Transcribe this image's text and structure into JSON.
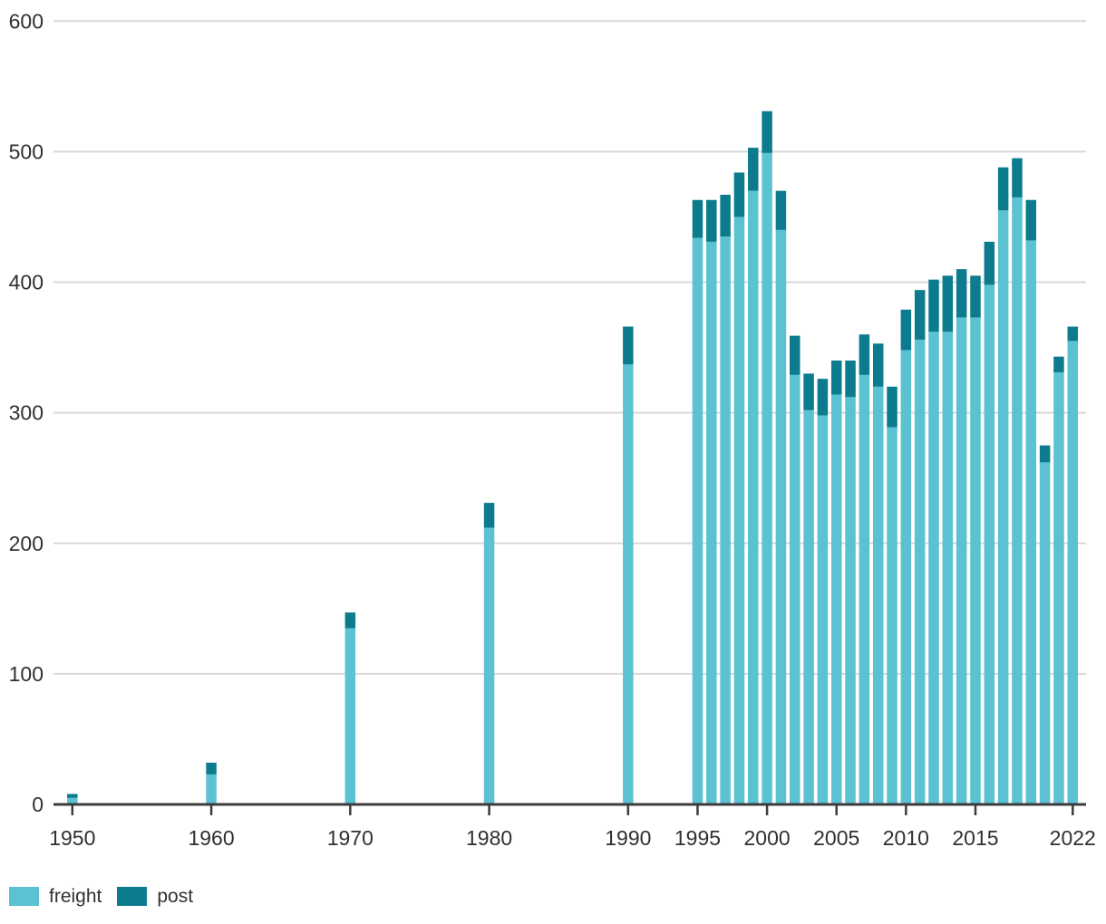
{
  "chart_data": {
    "type": "bar",
    "stacked": true,
    "title": "",
    "xlabel": "",
    "ylabel": "",
    "ylim": [
      0,
      600
    ],
    "yticks": [
      0,
      100,
      200,
      300,
      400,
      500,
      600
    ],
    "xticks": [
      1950,
      1960,
      1970,
      1980,
      1990,
      1995,
      2000,
      2005,
      2010,
      2015,
      2022
    ],
    "grid": true,
    "legend_position": "bottom-left",
    "categories": [
      1950,
      1960,
      1970,
      1980,
      1990,
      1995,
      1996,
      1997,
      1998,
      1999,
      2000,
      2001,
      2002,
      2003,
      2004,
      2005,
      2006,
      2007,
      2008,
      2009,
      2010,
      2011,
      2012,
      2013,
      2014,
      2015,
      2016,
      2017,
      2018,
      2019,
      2020,
      2021,
      2022
    ],
    "series": [
      {
        "name": "freight",
        "color": "#5BC2D2",
        "values": [
          5,
          23,
          135,
          212,
          337,
          434,
          431,
          435,
          450,
          470,
          499,
          440,
          329,
          302,
          298,
          314,
          312,
          329,
          320,
          289,
          348,
          356,
          362,
          362,
          373,
          373,
          398,
          455,
          465,
          432,
          262,
          331,
          355
        ]
      },
      {
        "name": "post",
        "color": "#0C7B8D",
        "values": [
          3,
          9,
          12,
          19,
          29,
          29,
          32,
          32,
          34,
          33,
          32,
          30,
          30,
          28,
          28,
          26,
          28,
          31,
          33,
          31,
          31,
          38,
          40,
          43,
          37,
          32,
          33,
          33,
          30,
          31,
          13,
          12,
          11
        ]
      }
    ],
    "colors": {
      "grid": "#d9d9d9",
      "axis": "#3c3c3c",
      "tick_label": "#303030"
    }
  },
  "legend": {
    "items": [
      {
        "label": "freight",
        "color": "#5BC2D2"
      },
      {
        "label": "post",
        "color": "#0C7B8D"
      }
    ]
  }
}
